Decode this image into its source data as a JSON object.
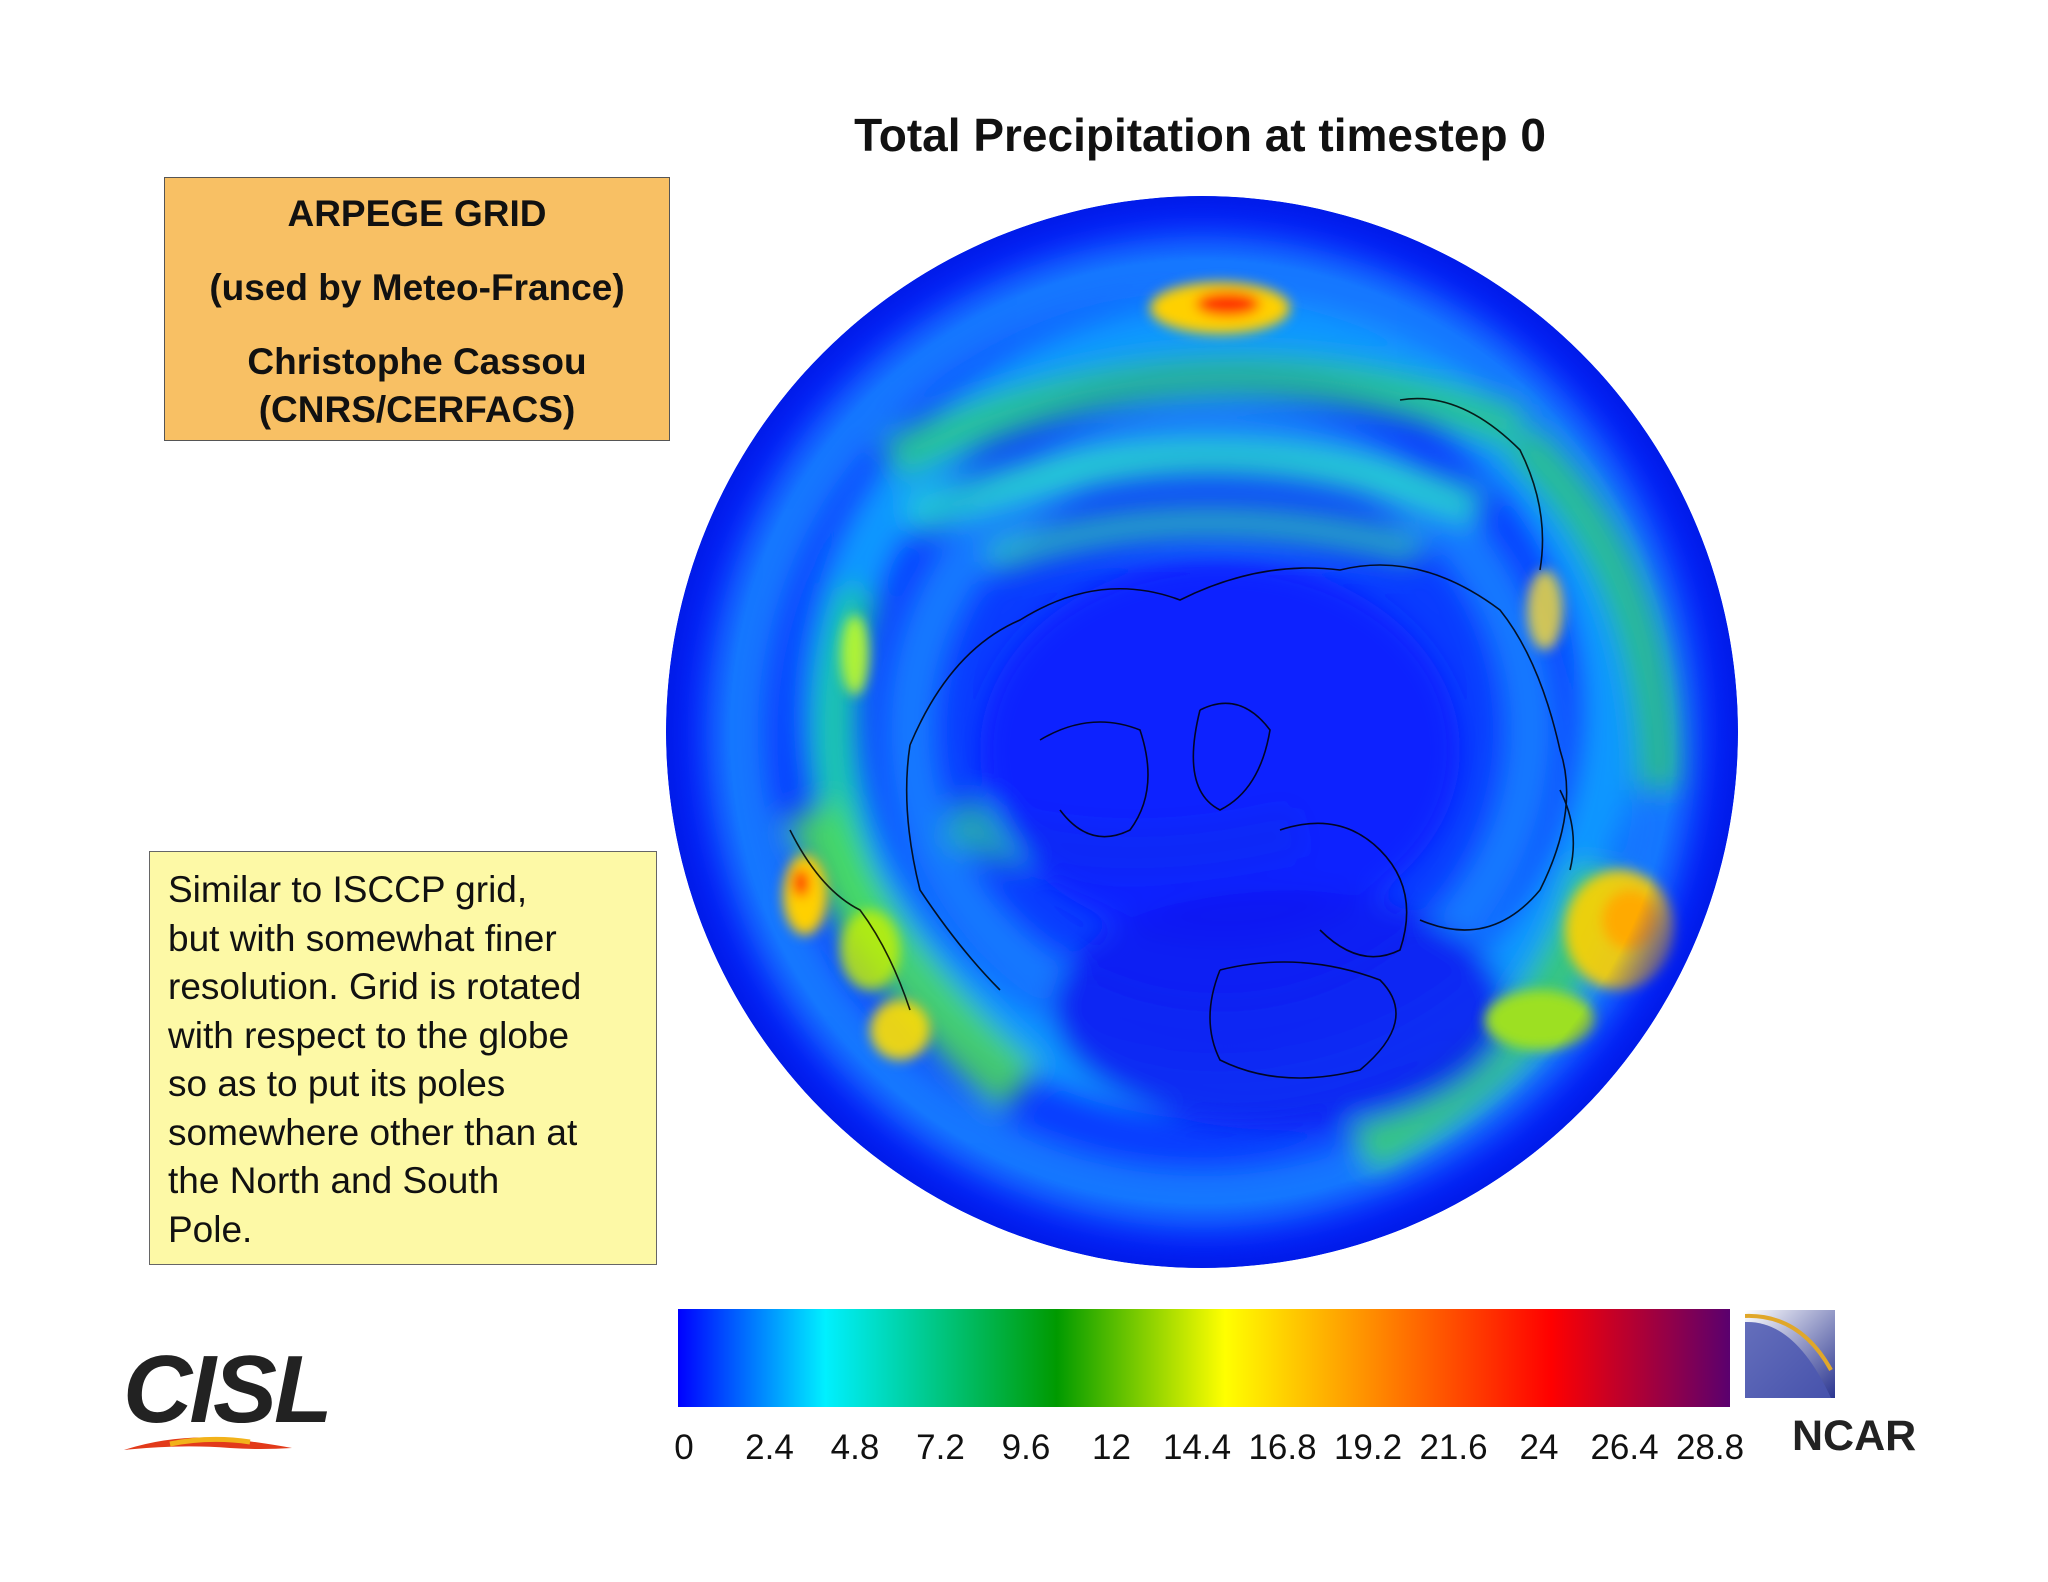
{
  "title": "Total Precipitation at timestep 0",
  "info_box": {
    "line1": "ARPEGE GRID",
    "line2": "(used by Meteo-France)",
    "line3": "Christophe Cassou",
    "line4": "(CNRS/CERFACS)"
  },
  "note_box": {
    "lines": [
      " Similar to ISCCP grid,",
      "but with somewhat finer",
      "resolution. Grid is rotated",
      "with respect to the globe",
      "so as to put its poles",
      "somewhere other than at",
      "the North and South",
      "Pole."
    ]
  },
  "colorbar": {
    "ticks": [
      "0",
      "2.4",
      "4.8",
      "7.2",
      "9.6",
      "12",
      "14.4",
      "16.8",
      "19.2",
      "21.6",
      "24",
      "26.4",
      "28.8"
    ],
    "colors": [
      "#0000ff",
      "#00f0ff",
      "#009a00",
      "#ffff00",
      "#ff0000",
      "#5a006e"
    ]
  },
  "logos": {
    "left": "CISL",
    "right": "NCAR"
  },
  "icons": {
    "left_logo": "cisl-swoosh-icon",
    "right_logo": "ncar-emblem-icon"
  }
}
